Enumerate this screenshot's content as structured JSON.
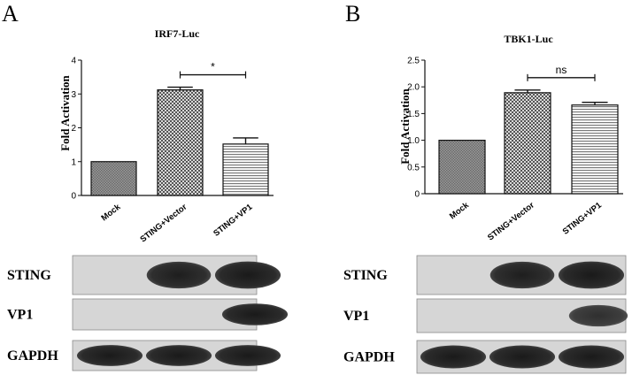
{
  "panels": [
    {
      "letter": "A",
      "chart_data": {
        "type": "bar",
        "title": "IRF7-Luc",
        "ylabel": "Fold Activation",
        "xlabel": "",
        "categories": [
          "Mock",
          "STING+Vector",
          "STING+VP1"
        ],
        "values": [
          1.0,
          3.12,
          1.52
        ],
        "errors": [
          0,
          0.08,
          0.18
        ],
        "patterns": [
          "crosshatch",
          "checker",
          "horizontal-lines"
        ],
        "ylim": [
          0,
          4
        ],
        "yticks": [
          "0",
          "1",
          "2",
          "3",
          "4"
        ],
        "grid": false,
        "significance": {
          "from": 1,
          "to": 2,
          "label": "*"
        }
      },
      "blot": {
        "rows": [
          {
            "label": "STING",
            "bands": [
              0,
              0.95,
              1.0
            ]
          },
          {
            "label": "VP1",
            "bands": [
              0,
              0,
              1.0
            ]
          },
          {
            "label": "GAPDH",
            "bands": [
              1.0,
              1.0,
              1.0
            ]
          }
        ]
      }
    },
    {
      "letter": "B",
      "chart_data": {
        "type": "bar",
        "title": "TBK1-Luc",
        "ylabel": "Fold Activation",
        "xlabel": "",
        "categories": [
          "Mock",
          "STING+Vector",
          "STING+VP1"
        ],
        "values": [
          1.0,
          1.89,
          1.66
        ],
        "errors": [
          0,
          0.05,
          0.05
        ],
        "patterns": [
          "crosshatch",
          "checker",
          "horizontal-lines"
        ],
        "ylim": [
          0,
          2.5
        ],
        "yticks": [
          "0",
          "0.5",
          "1.0",
          "1.5",
          "2.0",
          "2.5"
        ],
        "grid": false,
        "significance": {
          "from": 1,
          "to": 2,
          "label": "ns"
        }
      },
      "blot": {
        "rows": [
          {
            "label": "STING",
            "bands": [
              0,
              0.95,
              1.0
            ]
          },
          {
            "label": "VP1",
            "bands": [
              0,
              0,
              0.75
            ]
          },
          {
            "label": "GAPDH",
            "bands": [
              1.0,
              1.0,
              1.0
            ]
          }
        ]
      }
    }
  ]
}
